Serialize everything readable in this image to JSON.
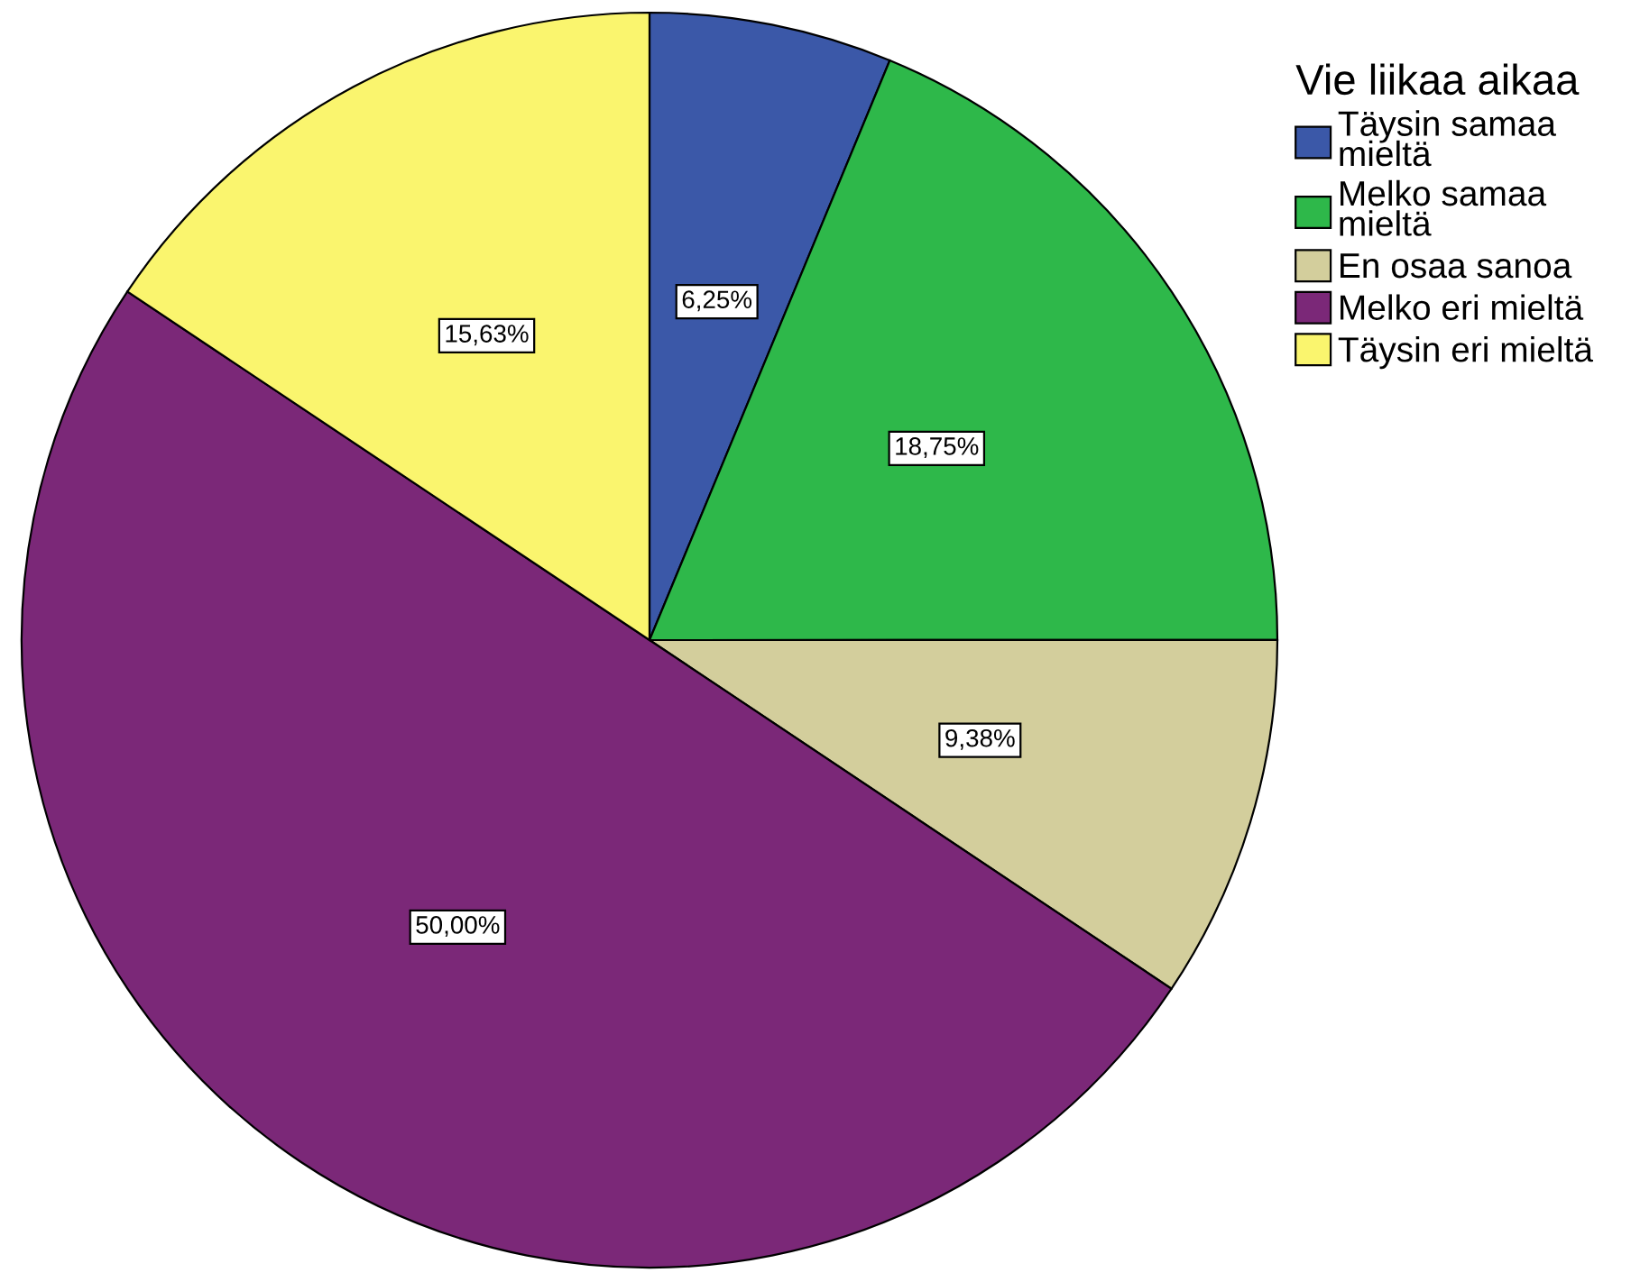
{
  "chart_data": {
    "type": "pie",
    "legend_title": "Vie liikaa aikaa",
    "legend": "top right",
    "categories": [
      "Täysin samaa mieltä",
      "Melko samaa mieltä",
      "En osaa sanoa",
      "Melko eri mieltä",
      "Täysin eri mieltä"
    ],
    "values": [
      6.25,
      18.75,
      9.38,
      50.0,
      15.63
    ],
    "value_labels": [
      "6,25%",
      "18,75%",
      "9,38%",
      "50,00%",
      "15,63%"
    ],
    "colors": [
      "#3b58a8",
      "#2eb84a",
      "#d3ce9c",
      "#7b2878",
      "#faf56e"
    ]
  }
}
